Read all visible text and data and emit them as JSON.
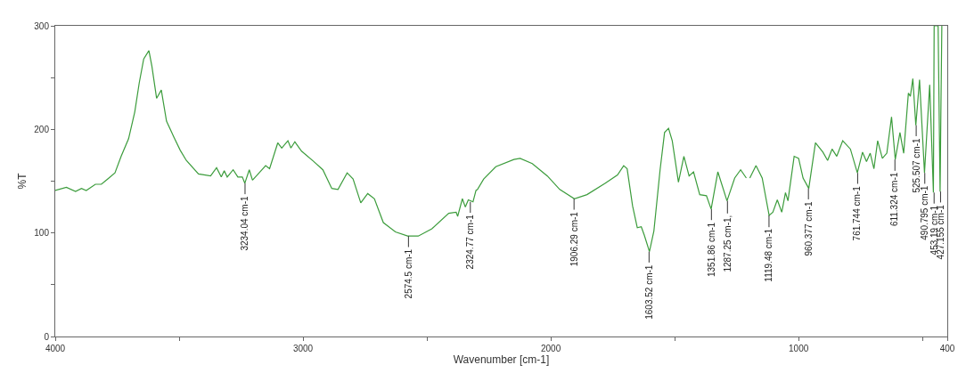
{
  "chart_data": {
    "type": "line",
    "xlabel": "Wavenumber [cm-1]",
    "ylabel": "%T",
    "xlim": [
      4000,
      400
    ],
    "ylim": [
      0,
      300
    ],
    "xticks": [
      4000,
      {
        "value": 3500,
        "label": null
      },
      3000,
      {
        "value": 2500,
        "label": null
      },
      2000,
      {
        "value": 1500,
        "label": null
      },
      1000,
      {
        "value": 500,
        "label": null
      },
      400
    ],
    "yticks": [
      0,
      {
        "value": 50,
        "label": null
      },
      100,
      {
        "value": 150,
        "label": null
      },
      200,
      {
        "value": 250,
        "label": null
      },
      300
    ],
    "grid": false,
    "marker": "none",
    "line_style": "solid",
    "series": [
      {
        "color": "#3c9c3c",
        "x": [
          4000,
          3955,
          3918,
          3894,
          3875,
          3838,
          3814,
          3789,
          3759,
          3734,
          3704,
          3679,
          3661,
          3643,
          3622,
          3610,
          3591,
          3572,
          3551,
          3520,
          3496,
          3471,
          3422,
          3373,
          3349,
          3330,
          3318,
          3306,
          3282,
          3263,
          3245,
          3235,
          3217,
          3204,
          3177,
          3151,
          3135,
          3102,
          3086,
          3061,
          3049,
          3033,
          3006,
          2957,
          2920,
          2884,
          2859,
          2822,
          2798,
          2767,
          2739,
          2712,
          2676,
          2627,
          2578,
          2535,
          2480,
          2412,
          2382,
          2376,
          2357,
          2345,
          2333,
          2314,
          2302,
          2296,
          2271,
          2222,
          2149,
          2124,
          2075,
          2014,
          1964,
          1905,
          1854,
          1780,
          1731,
          1706,
          1692,
          1670,
          1651,
          1635,
          1623,
          1602,
          1584,
          1559,
          1541,
          1525,
          1510,
          1485,
          1463,
          1442,
          1424,
          1399,
          1372,
          1353,
          1326,
          1289,
          1258,
          1234,
          1211,
          1205,
          1197,
          1172,
          1147,
          1119,
          1104,
          1086,
          1068,
          1053,
          1043,
          1018,
          1000,
          982,
          959,
          932,
          902,
          883,
          865,
          846,
          822,
          791,
          763,
          742,
          726,
          711,
          696,
          681,
          662,
          644,
          625,
          610,
          591,
          576,
          557,
          549,
          539,
          527,
          512,
          492,
          471,
          456,
          453,
          437,
          429,
          426,
          422,
          420
        ],
        "values": [
          141,
          144,
          140,
          143,
          141,
          147,
          147,
          152,
          158,
          174,
          191,
          217,
          245,
          268,
          276,
          261,
          230,
          238,
          208,
          192,
          180,
          170,
          157,
          155,
          163,
          154,
          160,
          154,
          161,
          154,
          154,
          148,
          161,
          151,
          158,
          165,
          162,
          187,
          182,
          189,
          182,
          188,
          179,
          169,
          161,
          143,
          142,
          158,
          152,
          129,
          138,
          133,
          110,
          101,
          97,
          97,
          104,
          119,
          120,
          116,
          133,
          125,
          132,
          130,
          141,
          142,
          152,
          164,
          171,
          172,
          167,
          155,
          142,
          133,
          137,
          148,
          156,
          165,
          162,
          126,
          105,
          106,
          98,
          82,
          102,
          161,
          197,
          201,
          189,
          149,
          174,
          155,
          159,
          137,
          136,
          123,
          159,
          131,
          153,
          161,
          153,
          null,
          153,
          165,
          153,
          117,
          120,
          132,
          120,
          139,
          131,
          174,
          172,
          153,
          143,
          187,
          178,
          170,
          181,
          174,
          189,
          181,
          158,
          178,
          169,
          177,
          162,
          189,
          172,
          177,
          212,
          171,
          197,
          177,
          235,
          232,
          249,
          204,
          248,
          158,
          243,
          139,
          300,
          300,
          140,
          213,
          300,
          300
        ]
      }
    ],
    "annotations": [
      {
        "text": "3234.04 cm-1",
        "x": 3234.04,
        "y": 148
      },
      {
        "text": "2574.5 cm-1",
        "x": 2574.5,
        "y": 97
      },
      {
        "text": "2324.77 cm-1",
        "x": 2324.77,
        "y": 130
      },
      {
        "text": "1906.29 cm-1",
        "x": 1906.29,
        "y": 133
      },
      {
        "text": "1603.52 cm-1",
        "x": 1603.52,
        "y": 82
      },
      {
        "text": "1351.86 cm-1",
        "x": 1351.86,
        "y": 123
      },
      {
        "text": "1287.25 cm-1,",
        "x": 1287.25,
        "y": 131
      },
      {
        "text": "1119.48 cm-1",
        "x": 1119.48,
        "y": 117
      },
      {
        "text": "960.377 cm-1",
        "x": 960.377,
        "y": 143
      },
      {
        "text": "761.744 cm-1",
        "x": 761.744,
        "y": 158
      },
      {
        "text": "611.324 cm-1",
        "x": 611.324,
        "y": 171
      },
      {
        "text": "525.507 cm-1",
        "x": 525.507,
        "y": 204
      },
      {
        "text": "490.795 cm-1",
        "x": 490.795,
        "y": 158
      },
      {
        "text": "453.19 cm-1",
        "x": 453.19,
        "y": 139
      },
      {
        "text": "427.155 cm-1",
        "x": 427.155,
        "y": 140
      }
    ]
  }
}
